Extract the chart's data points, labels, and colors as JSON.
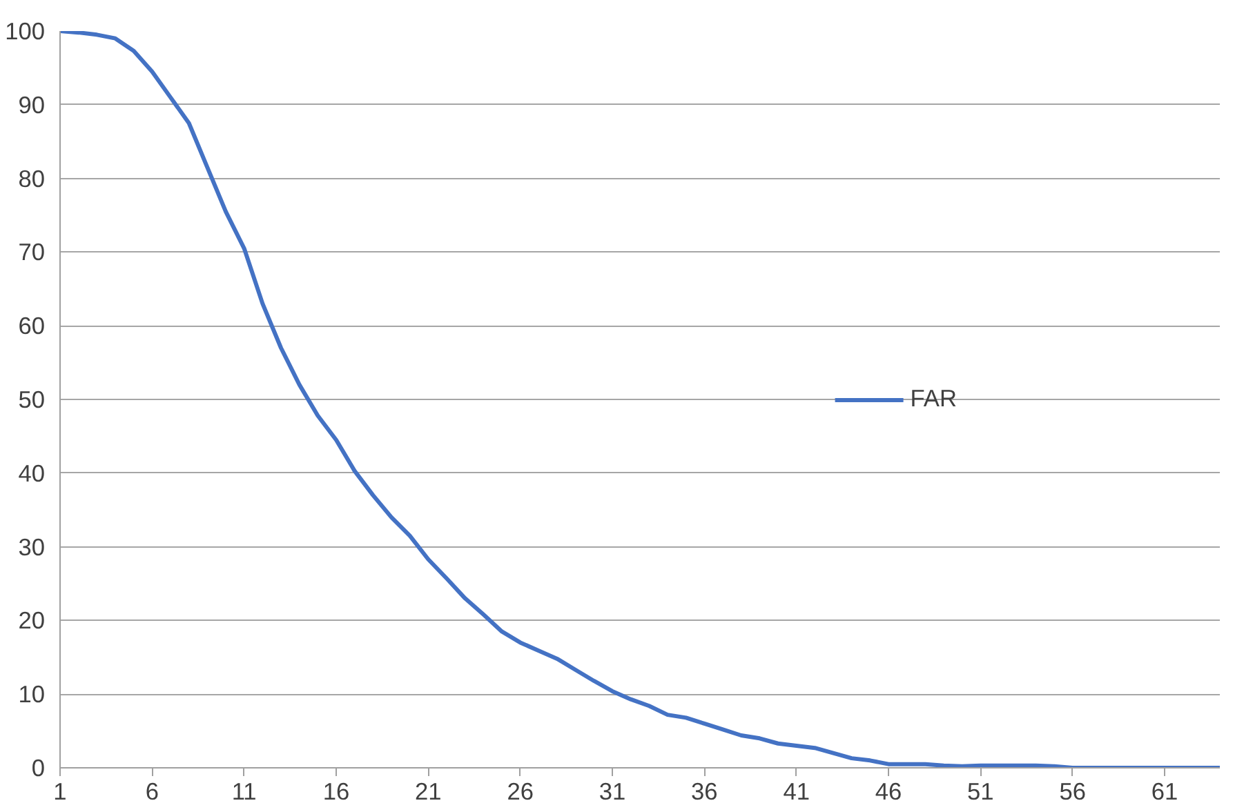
{
  "chart_data": {
    "type": "line",
    "x": [
      1,
      2,
      3,
      4,
      5,
      6,
      7,
      8,
      9,
      10,
      11,
      12,
      13,
      14,
      15,
      16,
      17,
      18,
      19,
      20,
      21,
      22,
      23,
      24,
      25,
      26,
      27,
      28,
      29,
      30,
      31,
      32,
      33,
      34,
      35,
      36,
      37,
      38,
      39,
      40,
      41,
      42,
      43,
      44,
      45,
      46,
      47,
      48,
      49,
      50,
      51,
      52,
      53,
      54,
      55,
      56,
      57,
      58,
      59,
      60,
      61,
      62,
      63,
      64
    ],
    "series": [
      {
        "name": "FAR",
        "color": "#4472c4",
        "values": [
          100,
          99.8,
          99.5,
          99,
          97.3,
          94.5,
          91,
          87.5,
          81.5,
          75.5,
          70.5,
          63,
          57,
          52,
          47.8,
          44.5,
          40.3,
          37,
          34,
          31.5,
          28.3,
          25.7,
          23,
          20.8,
          18.5,
          17,
          15.9,
          14.8,
          13.3,
          11.8,
          10.4,
          9.3,
          8.4,
          7.2,
          6.8,
          6,
          5.2,
          4.4,
          4,
          3.3,
          3,
          2.7,
          2,
          1.3,
          1,
          0.5,
          0.5,
          0.5,
          0.3,
          0.2,
          0.3,
          0.3,
          0.3,
          0.3,
          0.2,
          0,
          0,
          0,
          0,
          0,
          0,
          0,
          0,
          0
        ]
      }
    ],
    "xlim": [
      1,
      64
    ],
    "xticks": [
      1,
      6,
      11,
      16,
      21,
      26,
      31,
      36,
      41,
      46,
      51,
      56,
      61
    ],
    "ylim": [
      0,
      100
    ],
    "yticks": [
      0,
      10,
      20,
      30,
      40,
      50,
      60,
      70,
      80,
      90,
      100
    ],
    "grid": "y",
    "legend": "right",
    "marker": "none",
    "line_style": "solid"
  }
}
